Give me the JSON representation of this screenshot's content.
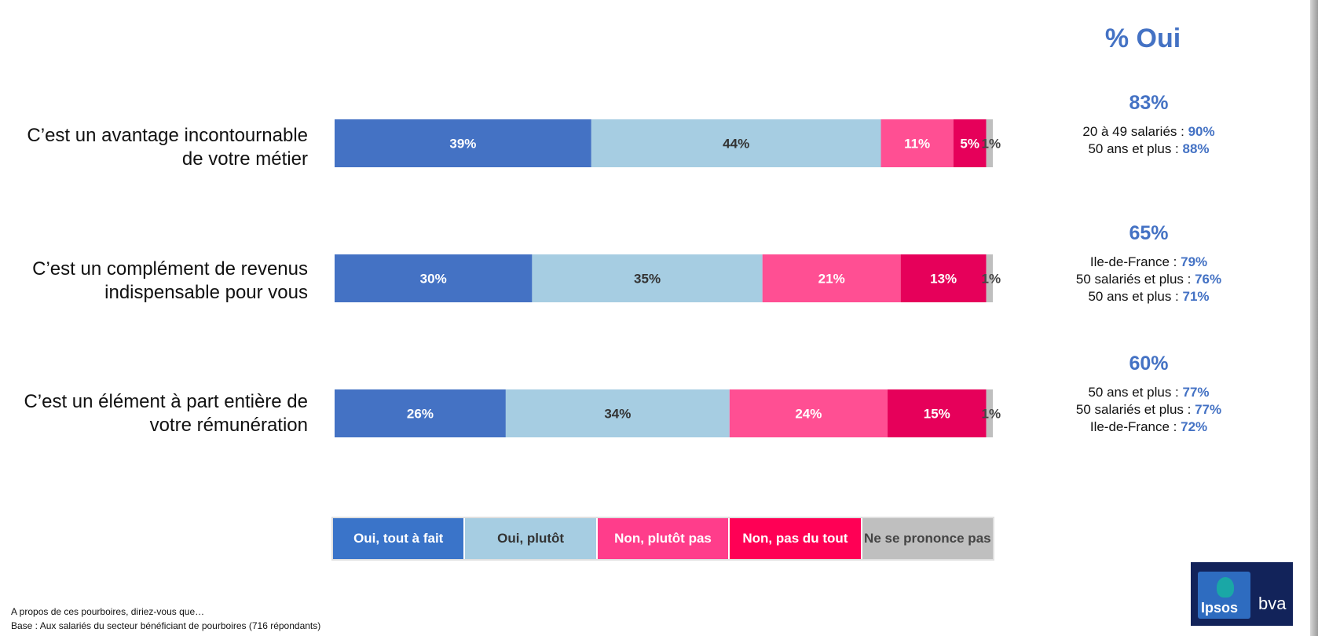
{
  "chart_data": {
    "type": "bar",
    "stacked": true,
    "orientation": "horizontal",
    "categories": [
      "C’est un avantage incontournable de votre métier",
      "C’est un complément de revenus indispensable pour vous",
      "C’est un élément à part entière de votre rémunération"
    ],
    "series": [
      {
        "name": "Oui, tout à fait",
        "values": [
          39,
          30,
          26
        ],
        "labels": [
          "39%",
          "30%",
          "26%"
        ],
        "color": "#4472c4",
        "text_color": "#ffffff"
      },
      {
        "name": "Oui, plutôt",
        "values": [
          44,
          35,
          34
        ],
        "labels": [
          "44%",
          "35%",
          "34%"
        ],
        "color": "#a6cde2",
        "text_color": "#333333"
      },
      {
        "name": "Non, plutôt pas",
        "values": [
          11,
          21,
          24
        ],
        "labels": [
          "11%",
          "21%",
          "24%"
        ],
        "color": "#ff4f93",
        "text_color": "#ffffff"
      },
      {
        "name": "Non, pas du tout",
        "values": [
          5,
          13,
          15
        ],
        "labels": [
          "5%",
          "13%",
          "15%"
        ],
        "color": "#e6005a",
        "text_color": "#ffffff"
      },
      {
        "name": "Ne se prononce pas",
        "values": [
          1,
          1,
          1
        ],
        "labels": [
          "1%",
          "1%",
          "1%"
        ],
        "color": "#bfbfbf",
        "text_color": "#444444"
      }
    ],
    "legend_position": "bottom"
  },
  "rows": [
    {
      "label_line1": "C’est un avantage incontournable",
      "label_line2": "de votre métier"
    },
    {
      "label_line1": "C’est un complément de revenus",
      "label_line2": "indispensable pour vous"
    },
    {
      "label_line1": "C’est un élément à part entière de",
      "label_line2": "votre rémunération"
    }
  ],
  "pct_oui": {
    "title": "% Oui",
    "blocks": [
      {
        "total": "83%",
        "lines": [
          {
            "text": "20 à 49 salariés : ",
            "value": "90%"
          },
          {
            "text": "50 ans et plus : ",
            "value": "88%"
          }
        ]
      },
      {
        "total": "65%",
        "lines": [
          {
            "text": "Ile-de-France : ",
            "value": "79%"
          },
          {
            "text": "50 salariés et plus : ",
            "value": "76%"
          },
          {
            "text": "50 ans et plus : ",
            "value": "71%"
          }
        ]
      },
      {
        "total": "60%",
        "lines": [
          {
            "text": "50 ans et plus : ",
            "value": "77%"
          },
          {
            "text": "50 salariés et plus : ",
            "value": "77%"
          },
          {
            "text": "Ile-de-France : ",
            "value": "72%"
          }
        ]
      }
    ]
  },
  "legend": {
    "items": [
      {
        "label": "Oui, tout à fait",
        "bg": "#3a74c9",
        "fg": "#ffffff"
      },
      {
        "label": "Oui, plutôt",
        "bg": "#a6cde2",
        "fg": "#333333"
      },
      {
        "label": "Non, plutôt pas",
        "bg": "#ff3d8b",
        "fg": "#ffffff"
      },
      {
        "label": "Non, pas du tout",
        "bg": "#ff0055",
        "fg": "#ffffff"
      },
      {
        "label": "Ne se prononce pas",
        "bg": "#bfbfbf",
        "fg": "#444444"
      }
    ]
  },
  "footer": {
    "question": "A propos de ces pourboires, diriez-vous que…",
    "base": "Base : Aux salariés du secteur bénéficiant de pourboires (716 répondants)"
  },
  "logo": {
    "brand1": "Ipsos",
    "brand2": "bva",
    "bg": "#12235a"
  }
}
